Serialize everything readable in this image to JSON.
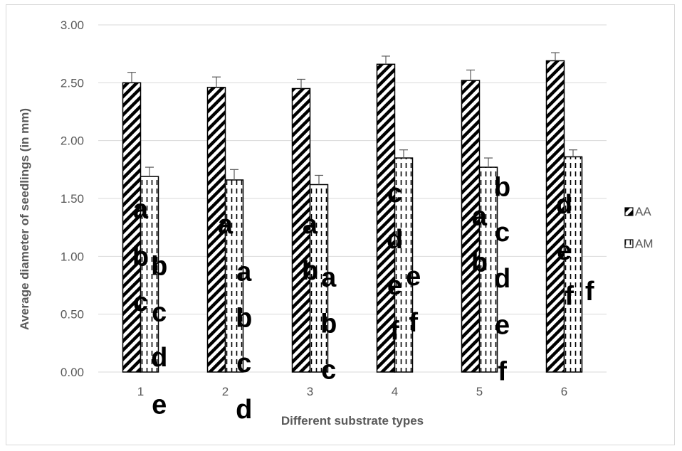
{
  "chart_data": {
    "type": "bar",
    "title": "",
    "xlabel": "Different substrate types",
    "ylabel": "Average diameter of seedlings (in mm)",
    "categories": [
      "1",
      "2",
      "3",
      "4",
      "5",
      "6"
    ],
    "ylim": [
      0,
      3
    ],
    "y_ticks": [
      "0.00",
      "0.50",
      "1.00",
      "1.50",
      "2.00",
      "2.50",
      "3.00"
    ],
    "grid": true,
    "legend_position": "right",
    "series": [
      {
        "name": "AA",
        "pattern": "diagonal-stripes",
        "values": [
          2.5,
          2.46,
          2.45,
          2.66,
          2.52,
          2.69
        ],
        "errors": [
          0.09,
          0.09,
          0.08,
          0.07,
          0.09,
          0.07
        ]
      },
      {
        "name": "AM",
        "pattern": "dashed-vertical",
        "values": [
          1.69,
          1.66,
          1.62,
          1.85,
          1.77,
          1.86
        ],
        "errors": [
          0.08,
          0.09,
          0.08,
          0.07,
          0.08,
          0.06
        ]
      }
    ],
    "annotations": [
      {
        "text": "a",
        "x": 1,
        "y": 1.41
      },
      {
        "text": "b",
        "x": 1,
        "y": 1.0
      },
      {
        "text": "c",
        "x": 1,
        "y": 0.61
      },
      {
        "text": "b",
        "x": 1.22,
        "y": 0.92
      },
      {
        "text": "c",
        "x": 1.22,
        "y": 0.52
      },
      {
        "text": "d",
        "x": 1.22,
        "y": 0.13
      },
      {
        "text": "e",
        "x": 1.22,
        "y": -0.28
      },
      {
        "text": "a",
        "x": 2,
        "y": 1.28
      },
      {
        "text": "a",
        "x": 2.22,
        "y": 0.87
      },
      {
        "text": "b",
        "x": 2.22,
        "y": 0.47
      },
      {
        "text": "c",
        "x": 2.22,
        "y": 0.08
      },
      {
        "text": "d",
        "x": 2.22,
        "y": -0.32
      },
      {
        "text": "a",
        "x": 3,
        "y": 1.28
      },
      {
        "text": "b",
        "x": 3,
        "y": 0.88
      },
      {
        "text": "a",
        "x": 3.22,
        "y": 0.82
      },
      {
        "text": "b",
        "x": 3.22,
        "y": 0.42
      },
      {
        "text": "c",
        "x": 3.22,
        "y": 0.02
      },
      {
        "text": "c",
        "x": 4,
        "y": 1.55
      },
      {
        "text": "d",
        "x": 4,
        "y": 1.15
      },
      {
        "text": "e",
        "x": 4,
        "y": 0.75
      },
      {
        "text": "f",
        "x": 4,
        "y": 0.36
      },
      {
        "text": "e",
        "x": 4.22,
        "y": 0.83
      },
      {
        "text": "f",
        "x": 4.22,
        "y": 0.43
      },
      {
        "text": "a",
        "x": 5,
        "y": 1.35
      },
      {
        "text": "b",
        "x": 5,
        "y": 0.95
      },
      {
        "text": "b",
        "x": 5.27,
        "y": 1.6
      },
      {
        "text": "c",
        "x": 5.27,
        "y": 1.21
      },
      {
        "text": "d",
        "x": 5.27,
        "y": 0.81
      },
      {
        "text": "e",
        "x": 5.27,
        "y": 0.41
      },
      {
        "text": "f",
        "x": 5.27,
        "y": 0.01
      },
      {
        "text": "d",
        "x": 6,
        "y": 1.45
      },
      {
        "text": "e",
        "x": 6,
        "y": 1.05
      },
      {
        "text": "f",
        "x": 6.06,
        "y": 0.66
      },
      {
        "text": "f",
        "x": 6.3,
        "y": 0.7
      }
    ],
    "colors": {
      "grid": "#d9d9d9",
      "text": "#595959",
      "bar_fill": "#ffffff",
      "bar_stroke": "#000000",
      "error_bar": "#595959"
    }
  }
}
